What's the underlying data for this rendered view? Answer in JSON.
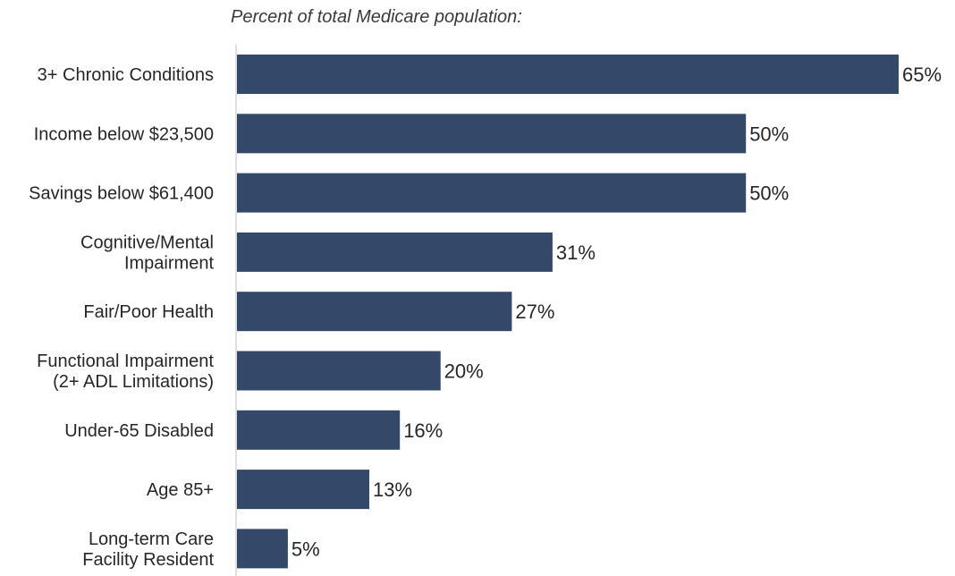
{
  "colors": {
    "bar": "#34496a",
    "axis": "#bfbfbf",
    "text": "#262626"
  },
  "chart_data": {
    "type": "bar",
    "orientation": "horizontal",
    "subtitle": "Percent of total Medicare population:",
    "categories": [
      [
        "3+ Chronic Conditions"
      ],
      [
        "Income below $23,500"
      ],
      [
        "Savings below $61,400"
      ],
      [
        "Cognitive/Mental",
        "Impairment"
      ],
      [
        "Fair/Poor Health"
      ],
      [
        "Functional Impairment",
        "(2+ ADL Limitations)"
      ],
      [
        "Under-65 Disabled"
      ],
      [
        "Age 85+"
      ],
      [
        "Long-term Care",
        "Facility Resident"
      ]
    ],
    "values": [
      65,
      50,
      50,
      31,
      27,
      20,
      16,
      13,
      5
    ],
    "value_labels": [
      "65%",
      "50%",
      "50%",
      "31%",
      "27%",
      "20%",
      "16%",
      "13%",
      "5%"
    ],
    "unit": "%",
    "xlim": [
      0,
      65
    ],
    "grid": false,
    "legend": "none"
  }
}
